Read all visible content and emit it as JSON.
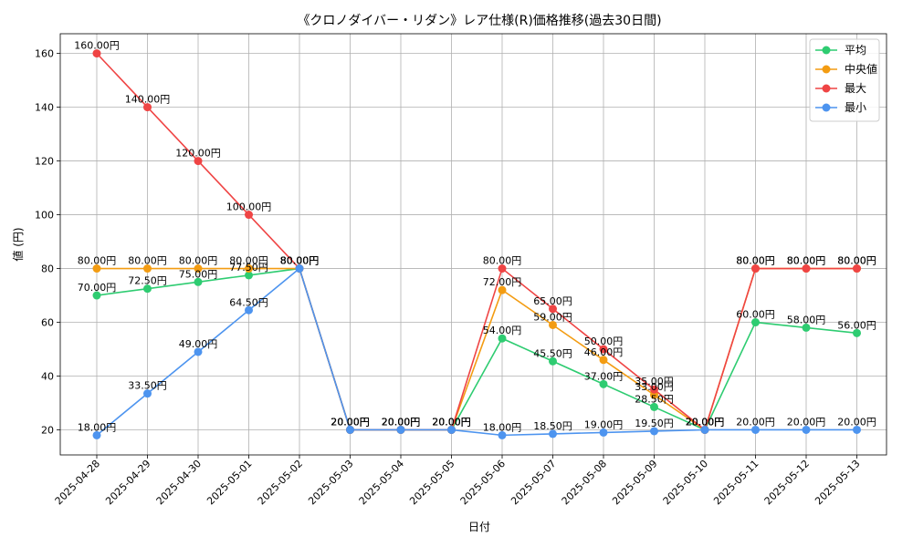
{
  "chart_data": {
    "type": "line",
    "title": "《クロノダイバー・リダン》レア仕様(R)価格推移(過去30日間)",
    "xlabel": "日付",
    "ylabel": "値 (円)",
    "categories": [
      "2025-04-28",
      "2025-04-29",
      "2025-04-30",
      "2025-05-01",
      "2025-05-02",
      "2025-05-03",
      "2025-05-04",
      "2025-05-05",
      "2025-05-06",
      "2025-05-07",
      "2025-05-08",
      "2025-05-09",
      "2025-05-10",
      "2025-05-11",
      "2025-05-12",
      "2025-05-13"
    ],
    "ylim": [
      10.67,
      167.33
    ],
    "yticks": [
      20,
      40,
      60,
      80,
      100,
      120,
      140,
      160
    ],
    "grid": true,
    "legend_position": "top-right",
    "value_suffix": "円",
    "series": [
      {
        "name": "平均",
        "color": "#2ecc71",
        "values": [
          70,
          72.5,
          75,
          77.5,
          80,
          20,
          20,
          20,
          54,
          45.5,
          37,
          28.5,
          20,
          60,
          58,
          56
        ]
      },
      {
        "name": "中央値",
        "color": "#f39c12",
        "values": [
          80,
          80,
          80,
          80,
          80,
          20,
          20,
          20,
          72,
          59,
          46,
          33,
          20,
          80,
          80,
          80
        ]
      },
      {
        "name": "最大",
        "color": "#ef4444",
        "values": [
          160,
          140,
          120,
          100,
          80,
          20,
          20,
          20,
          80,
          65,
          50,
          35,
          20,
          80,
          80,
          80
        ]
      },
      {
        "name": "最小",
        "color": "#4d94ef",
        "values": [
          18,
          33.5,
          49,
          64.5,
          80,
          20,
          20,
          20,
          18,
          18.5,
          19,
          19.5,
          20,
          20,
          20,
          20
        ]
      }
    ]
  }
}
